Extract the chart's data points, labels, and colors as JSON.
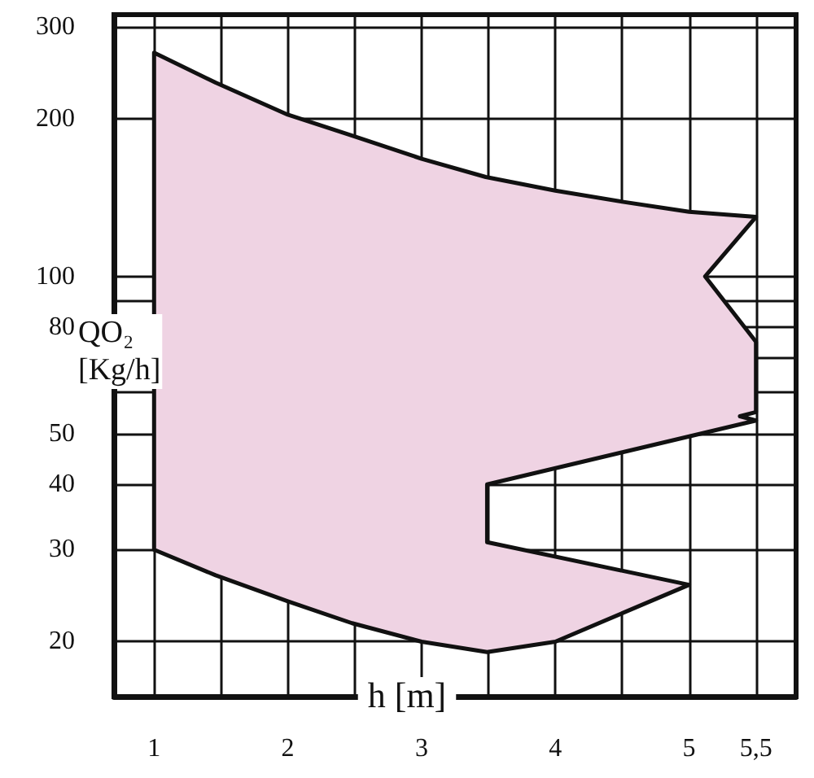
{
  "chart_data": {
    "type": "area",
    "xlabel": "h [m]",
    "ylabel": "QO₂ [Kg/h]",
    "log": "y",
    "grid": true,
    "xlim": [
      0.7,
      5.8
    ],
    "xticks": [
      1,
      {
        "value": 1.5,
        "label": null
      },
      2,
      {
        "value": 2.5,
        "label": null
      },
      3,
      {
        "value": 3.5,
        "label": null
      },
      4,
      {
        "value": 4.5,
        "label": null
      },
      5,
      {
        "value": 5.5,
        "label": "5,5"
      }
    ],
    "ylim": [
      15.7,
      317
    ],
    "yticks": [
      20,
      30,
      40,
      50,
      {
        "value": 60,
        "label": null
      },
      {
        "value": 70,
        "label": null
      },
      80,
      {
        "value": 90,
        "label": null
      },
      100,
      200,
      300
    ],
    "series": [
      {
        "color": "#efd3e3",
        "x": [
          1,
          1.46,
          2,
          2.48,
          3,
          3.48,
          4,
          4.5,
          5,
          5.5,
          5.12,
          5.5,
          5.5,
          5.38,
          5.5,
          3.49,
          3.49,
          5,
          4,
          3.49,
          3,
          2.48,
          2,
          1.46,
          1
        ],
        "values": [
          268,
          235,
          204,
          186,
          168,
          155,
          146,
          139,
          133,
          130,
          100,
          75,
          55,
          54,
          53,
          40,
          31,
          25.7,
          20,
          19.1,
          20,
          21.7,
          23.9,
          26.8,
          30
        ]
      }
    ]
  }
}
